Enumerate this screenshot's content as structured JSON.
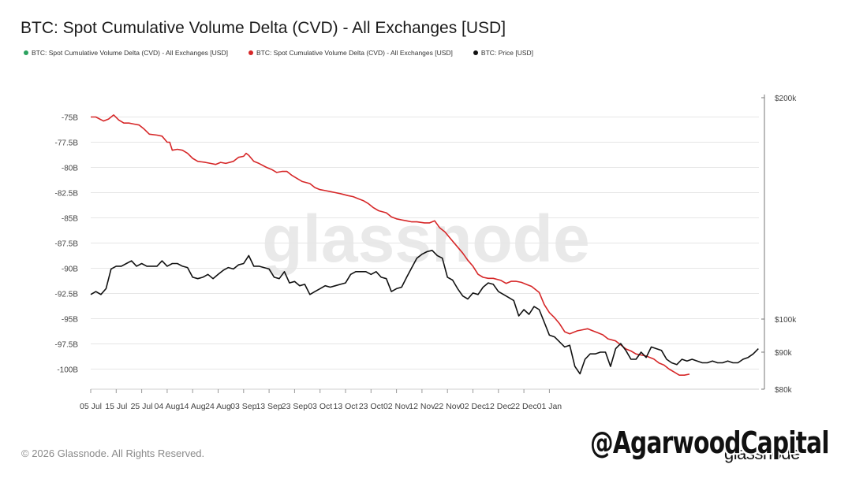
{
  "title": "BTC: Spot Cumulative Volume Delta (CVD) - All Exchanges [USD]",
  "legend": [
    {
      "label": "BTC: Spot Cumulative Volume Delta (CVD) - All Exchanges [USD]",
      "color": "#2ca25f"
    },
    {
      "label": "BTC: Spot Cumulative Volume Delta (CVD) - All Exchanges [USD]",
      "color": "#d62728"
    },
    {
      "label": "BTC: Price [USD]",
      "color": "#111111"
    }
  ],
  "footer": "© 2026 Glassnode. All Rights Reserved.",
  "watermark": "glassnode",
  "brand": "glassnode",
  "handle": "@AgarwoodCapital",
  "colors": {
    "cvd": "#d62728",
    "price": "#111111",
    "grid": "#e6e6e6",
    "axis": "#555555"
  },
  "chart_data": {
    "type": "line",
    "title": "BTC: Spot Cumulative Volume Delta (CVD) - All Exchanges [USD]",
    "x_tick_labels": [
      "05 Jul",
      "15 Jul",
      "25 Jul",
      "04 Aug",
      "14 Aug",
      "24 Aug",
      "03 Sep",
      "13 Sep",
      "23 Sep",
      "03 Oct",
      "13 Oct",
      "23 Oct",
      "02 Nov",
      "12 Nov",
      "22 Nov",
      "02 Dec",
      "12 Dec",
      "22 Dec",
      "01 Jan"
    ],
    "y_left": {
      "ticks": [
        -75,
        -77.5,
        -80,
        -82.5,
        -85,
        -87.5,
        -90,
        -92.5,
        -95,
        -97.5,
        -100
      ],
      "tick_labels": [
        "-75B",
        "-77.5B",
        "-80B",
        "-82.5B",
        "-85B",
        "-87.5B",
        "-90B",
        "-92.5B",
        "-95B",
        "-97.5B",
        "-100B"
      ],
      "range": [
        -101.9,
        -73
      ]
    },
    "y_right": {
      "ticks": [
        80000,
        90000,
        100000,
        200000
      ],
      "tick_labels": [
        "$80k",
        "$90k",
        "$100k",
        "$200k"
      ],
      "scale": "log",
      "range": [
        80000,
        200000
      ]
    },
    "grid": true,
    "legend_position": "top-left",
    "series": [
      {
        "name": "BTC: Spot Cumulative Volume Delta (CVD) - All Exchanges [USD]",
        "axis": "left",
        "units": "B USD",
        "points": [
          [
            0,
            -75
          ],
          [
            2,
            -75
          ],
          [
            5,
            -75.4
          ],
          [
            7,
            -75.2
          ],
          [
            9,
            -74.8
          ],
          [
            11,
            -75.3
          ],
          [
            13,
            -75.6
          ],
          [
            15,
            -75.6
          ],
          [
            17,
            -75.7
          ],
          [
            19,
            -75.8
          ],
          [
            21,
            -76.2
          ],
          [
            23,
            -76.7
          ],
          [
            26,
            -76.8
          ],
          [
            28,
            -76.9
          ],
          [
            30,
            -77.5
          ],
          [
            31,
            -77.5
          ],
          [
            32,
            -78.3
          ],
          [
            34,
            -78.2
          ],
          [
            36,
            -78.3
          ],
          [
            38,
            -78.6
          ],
          [
            40,
            -79.1
          ],
          [
            42,
            -79.4
          ],
          [
            45,
            -79.5
          ],
          [
            47,
            -79.6
          ],
          [
            49,
            -79.7
          ],
          [
            51,
            -79.5
          ],
          [
            53,
            -79.6
          ],
          [
            56,
            -79.4
          ],
          [
            58,
            -79
          ],
          [
            60,
            -78.9
          ],
          [
            61,
            -78.6
          ],
          [
            62,
            -78.8
          ],
          [
            64,
            -79.4
          ],
          [
            66,
            -79.6
          ],
          [
            69,
            -80
          ],
          [
            71,
            -80.2
          ],
          [
            73,
            -80.5
          ],
          [
            75,
            -80.4
          ],
          [
            77,
            -80.4
          ],
          [
            79,
            -80.8
          ],
          [
            81,
            -81.1
          ],
          [
            83,
            -81.4
          ],
          [
            86,
            -81.6
          ],
          [
            88,
            -82
          ],
          [
            90,
            -82.2
          ],
          [
            92,
            -82.3
          ],
          [
            94,
            -82.4
          ],
          [
            96,
            -82.5
          ],
          [
            98,
            -82.6
          ],
          [
            101,
            -82.8
          ],
          [
            103,
            -82.9
          ],
          [
            105,
            -83.1
          ],
          [
            107,
            -83.3
          ],
          [
            109,
            -83.6
          ],
          [
            111,
            -84
          ],
          [
            113,
            -84.3
          ],
          [
            116,
            -84.5
          ],
          [
            118,
            -84.9
          ],
          [
            120,
            -85.1
          ],
          [
            122,
            -85.2
          ],
          [
            124,
            -85.3
          ],
          [
            126,
            -85.4
          ],
          [
            128,
            -85.4
          ],
          [
            131,
            -85.5
          ],
          [
            133,
            -85.5
          ],
          [
            135,
            -85.3
          ],
          [
            137,
            -86
          ],
          [
            139,
            -86.4
          ],
          [
            141,
            -87
          ],
          [
            143,
            -87.6
          ],
          [
            146,
            -88.5
          ],
          [
            148,
            -89.2
          ],
          [
            150,
            -89.8
          ],
          [
            152,
            -90.6
          ],
          [
            154,
            -90.9
          ],
          [
            156,
            -91
          ],
          [
            158,
            -91
          ],
          [
            161,
            -91.2
          ],
          [
            163,
            -91.5
          ],
          [
            165,
            -91.3
          ],
          [
            167,
            -91.3
          ],
          [
            169,
            -91.4
          ],
          [
            171,
            -91.6
          ],
          [
            173,
            -91.8
          ],
          [
            176,
            -92.4
          ],
          [
            178,
            -93.6
          ],
          [
            180,
            -94.4
          ],
          [
            182,
            -94.9
          ],
          [
            184,
            -95.5
          ],
          [
            186,
            -96.3
          ],
          [
            188,
            -96.5
          ],
          [
            191,
            -96.2
          ],
          [
            193,
            -96.1
          ],
          [
            195,
            -96
          ],
          [
            197,
            -96.2
          ],
          [
            199,
            -96.4
          ],
          [
            201,
            -96.6
          ],
          [
            203,
            -97
          ],
          [
            206,
            -97.2
          ],
          [
            208,
            -97.6
          ],
          [
            210,
            -98
          ],
          [
            212,
            -98.2
          ],
          [
            214,
            -98.5
          ],
          [
            216,
            -98.6
          ],
          [
            218,
            -98.7
          ],
          [
            221,
            -99
          ],
          [
            223,
            -99.4
          ],
          [
            225,
            -99.6
          ],
          [
            227,
            -100
          ],
          [
            229,
            -100.3
          ],
          [
            231,
            -100.6
          ],
          [
            233,
            -100.6
          ],
          [
            235,
            -100.5
          ]
        ]
      },
      {
        "name": "BTC: Price [USD]",
        "axis": "right",
        "units": "USD",
        "points": [
          [
            0,
            108000
          ],
          [
            2,
            109000
          ],
          [
            4,
            108000
          ],
          [
            6,
            110000
          ],
          [
            8,
            117000
          ],
          [
            10,
            118000
          ],
          [
            12,
            118000
          ],
          [
            14,
            119000
          ],
          [
            16,
            120000
          ],
          [
            18,
            118000
          ],
          [
            20,
            119000
          ],
          [
            22,
            118000
          ],
          [
            24,
            118000
          ],
          [
            26,
            118000
          ],
          [
            28,
            120000
          ],
          [
            30,
            118000
          ],
          [
            32,
            119000
          ],
          [
            34,
            119000
          ],
          [
            36,
            118000
          ],
          [
            38,
            117500
          ],
          [
            40,
            114000
          ],
          [
            42,
            113500
          ],
          [
            44,
            114000
          ],
          [
            46,
            115000
          ],
          [
            48,
            113500
          ],
          [
            50,
            115000
          ],
          [
            52,
            116500
          ],
          [
            54,
            117500
          ],
          [
            56,
            117000
          ],
          [
            58,
            118500
          ],
          [
            60,
            119000
          ],
          [
            62,
            122000
          ],
          [
            64,
            118000
          ],
          [
            66,
            118000
          ],
          [
            68,
            117500
          ],
          [
            70,
            117000
          ],
          [
            72,
            114000
          ],
          [
            74,
            113500
          ],
          [
            76,
            116000
          ],
          [
            78,
            112000
          ],
          [
            80,
            112500
          ],
          [
            82,
            111000
          ],
          [
            84,
            111500
          ],
          [
            86,
            108000
          ],
          [
            88,
            109000
          ],
          [
            90,
            110000
          ],
          [
            92,
            111000
          ],
          [
            94,
            110500
          ],
          [
            96,
            111000
          ],
          [
            98,
            111500
          ],
          [
            100,
            112000
          ],
          [
            102,
            115000
          ],
          [
            104,
            116000
          ],
          [
            106,
            116000
          ],
          [
            108,
            116000
          ],
          [
            110,
            115000
          ],
          [
            112,
            116000
          ],
          [
            114,
            114000
          ],
          [
            116,
            113500
          ],
          [
            118,
            109000
          ],
          [
            120,
            110000
          ],
          [
            122,
            110500
          ],
          [
            124,
            114000
          ],
          [
            126,
            117500
          ],
          [
            128,
            121000
          ],
          [
            130,
            122500
          ],
          [
            132,
            123500
          ],
          [
            134,
            124000
          ],
          [
            136,
            122000
          ],
          [
            138,
            121000
          ],
          [
            140,
            114000
          ],
          [
            142,
            113000
          ],
          [
            144,
            110000
          ],
          [
            146,
            107500
          ],
          [
            148,
            106500
          ],
          [
            150,
            108500
          ],
          [
            152,
            108000
          ],
          [
            154,
            110500
          ],
          [
            156,
            112000
          ],
          [
            158,
            111500
          ],
          [
            160,
            109000
          ],
          [
            162,
            108000
          ],
          [
            164,
            107000
          ],
          [
            166,
            106000
          ],
          [
            168,
            101000
          ],
          [
            170,
            103000
          ],
          [
            172,
            101500
          ],
          [
            174,
            104000
          ],
          [
            176,
            103000
          ],
          [
            178,
            99000
          ],
          [
            180,
            95000
          ],
          [
            182,
            94500
          ],
          [
            184,
            93000
          ],
          [
            186,
            91500
          ],
          [
            188,
            92000
          ],
          [
            190,
            86000
          ],
          [
            192,
            84000
          ],
          [
            194,
            88000
          ],
          [
            196,
            89500
          ],
          [
            198,
            89500
          ],
          [
            200,
            90000
          ],
          [
            202,
            90000
          ],
          [
            204,
            86000
          ],
          [
            206,
            91000
          ],
          [
            208,
            92500
          ],
          [
            210,
            90500
          ],
          [
            212,
            88000
          ],
          [
            214,
            88000
          ],
          [
            216,
            90000
          ],
          [
            218,
            88500
          ],
          [
            220,
            91500
          ],
          [
            222,
            91000
          ],
          [
            224,
            90500
          ],
          [
            226,
            88000
          ],
          [
            228,
            87000
          ],
          [
            230,
            86500
          ],
          [
            232,
            88000
          ],
          [
            234,
            87500
          ],
          [
            236,
            88000
          ],
          [
            238,
            87500
          ],
          [
            240,
            87000
          ],
          [
            242,
            87000
          ],
          [
            244,
            87500
          ],
          [
            246,
            87000
          ],
          [
            248,
            87000
          ],
          [
            250,
            87500
          ],
          [
            252,
            87000
          ],
          [
            254,
            87000
          ],
          [
            256,
            88000
          ],
          [
            258,
            88500
          ],
          [
            260,
            89500
          ],
          [
            262,
            91000
          ]
        ],
        "note_x": "x = days since 05 Jul"
      }
    ]
  }
}
